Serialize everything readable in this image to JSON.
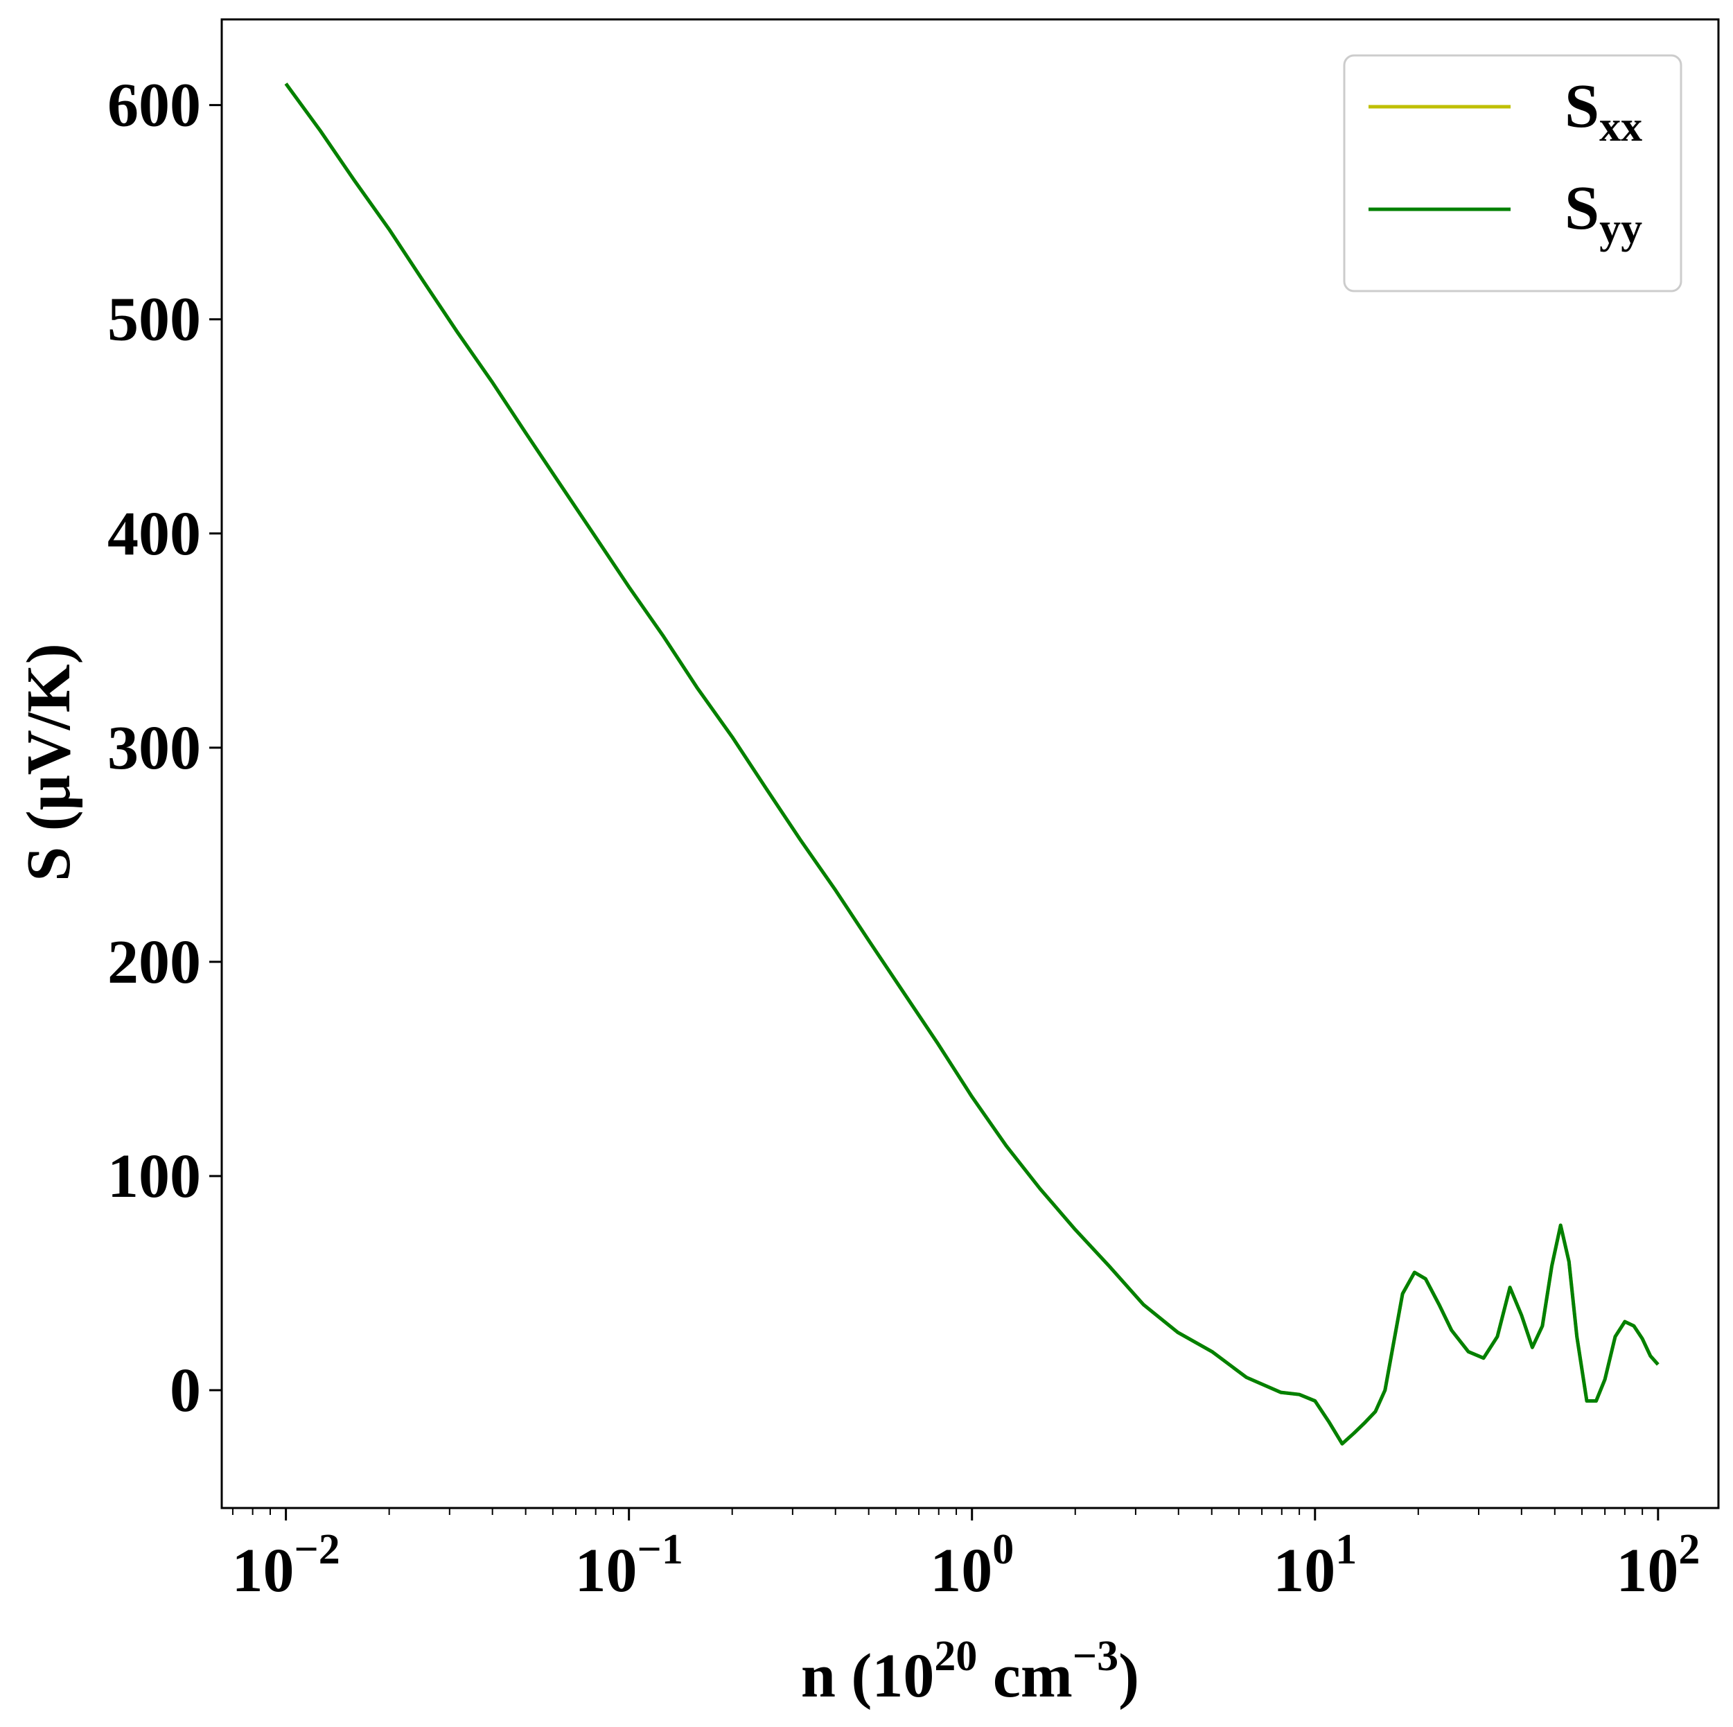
{
  "chart_data": {
    "type": "line",
    "xscale": "log",
    "xlim": [
      0.0065,
      150
    ],
    "ylim": [
      -55,
      640
    ],
    "x_ticks": [
      {
        "value": 0.01,
        "base": "10",
        "exp": "−2"
      },
      {
        "value": 0.1,
        "base": "10",
        "exp": "−1"
      },
      {
        "value": 1,
        "base": "10",
        "exp": "0"
      },
      {
        "value": 10,
        "base": "10",
        "exp": "1"
      },
      {
        "value": 100,
        "base": "10",
        "exp": "2"
      }
    ],
    "y_ticks": [
      0,
      100,
      200,
      300,
      400,
      500,
      600
    ],
    "xlabel": {
      "pre": "n (10",
      "sup1": "20",
      "mid": " cm",
      "sup2": "−3",
      "post": ")"
    },
    "ylabel": "S (μV/K)",
    "grid": false,
    "legend": {
      "placement": "upper right"
    },
    "series": [
      {
        "name": "S",
        "sub": "xx",
        "color": "#bfbf00",
        "x": [
          0.01,
          0.0126,
          0.0158,
          0.02,
          0.0251,
          0.0316,
          0.0398,
          0.05,
          0.063,
          0.0794,
          0.1,
          0.126,
          0.158,
          0.2,
          0.251,
          0.316,
          0.398,
          0.5,
          0.63,
          0.794,
          1,
          1.26,
          1.58,
          2,
          2.51,
          3.16,
          3.98,
          5.01,
          6.31,
          7.94,
          9.0,
          10,
          11,
          12,
          13,
          14,
          15,
          16,
          18,
          19.5,
          21,
          23,
          25,
          28,
          31,
          34,
          37,
          40,
          43,
          46,
          49,
          52,
          55,
          58,
          62,
          66,
          70,
          75,
          80,
          85,
          90,
          95,
          100
        ],
        "y": [
          610,
          588,
          565,
          542,
          518,
          494,
          471,
          447,
          423,
          399,
          375,
          352,
          328,
          305,
          281,
          257,
          234,
          210,
          186,
          162,
          137,
          114,
          94,
          75,
          58,
          40,
          27,
          18,
          6,
          -1,
          -2,
          -5,
          -15,
          -25,
          -20,
          -15,
          -10,
          0,
          45,
          55,
          52,
          40,
          28,
          18,
          15,
          25,
          48,
          35,
          20,
          30,
          58,
          77,
          60,
          25,
          -5,
          -5,
          5,
          25,
          32,
          30,
          24,
          16,
          12
        ]
      },
      {
        "name": "S",
        "sub": "yy",
        "color": "#008000",
        "x": [
          0.01,
          0.0126,
          0.0158,
          0.02,
          0.0251,
          0.0316,
          0.0398,
          0.05,
          0.063,
          0.0794,
          0.1,
          0.126,
          0.158,
          0.2,
          0.251,
          0.316,
          0.398,
          0.5,
          0.63,
          0.794,
          1,
          1.26,
          1.58,
          2,
          2.51,
          3.16,
          3.98,
          5.01,
          6.31,
          7.94,
          9.0,
          10,
          11,
          12,
          13,
          14,
          15,
          16,
          18,
          19.5,
          21,
          23,
          25,
          28,
          31,
          34,
          37,
          40,
          43,
          46,
          49,
          52,
          55,
          58,
          62,
          66,
          70,
          75,
          80,
          85,
          90,
          95,
          100
        ],
        "y": [
          610,
          588,
          565,
          542,
          518,
          494,
          471,
          447,
          423,
          399,
          375,
          352,
          328,
          305,
          281,
          257,
          234,
          210,
          186,
          162,
          137,
          114,
          94,
          75,
          58,
          40,
          27,
          18,
          6,
          -1,
          -2,
          -5,
          -15,
          -25,
          -20,
          -15,
          -10,
          0,
          45,
          55,
          52,
          40,
          28,
          18,
          15,
          25,
          48,
          35,
          20,
          30,
          58,
          77,
          60,
          25,
          -5,
          -5,
          5,
          25,
          32,
          30,
          24,
          16,
          12
        ]
      }
    ]
  }
}
